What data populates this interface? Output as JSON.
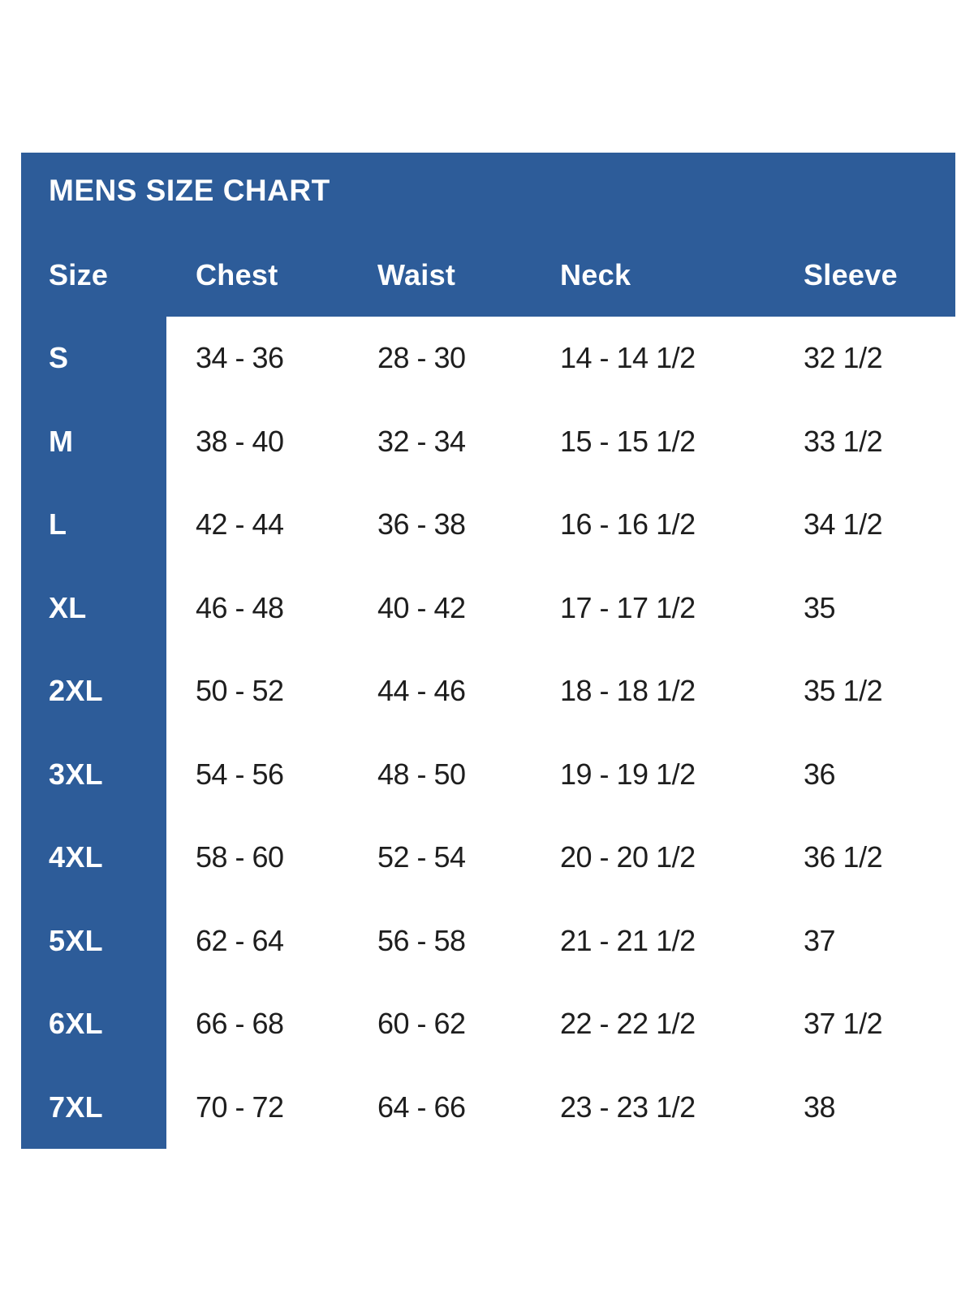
{
  "page": {
    "background_color": "#ffffff"
  },
  "panel": {
    "background_color": "#2d5c99",
    "title_color": "#ffffff",
    "data_text_color": "#1e1e1e"
  },
  "chart_data": {
    "type": "table",
    "title": "MENS SIZE CHART",
    "columns": [
      "Size",
      "Chest",
      "Waist",
      "Neck",
      "Sleeve"
    ],
    "rows": [
      [
        "S",
        "34 - 36",
        "28 - 30",
        "14 - 14 1/2",
        "32 1/2"
      ],
      [
        "M",
        "38 - 40",
        "32 - 34",
        "15 - 15 1/2",
        "33 1/2"
      ],
      [
        "L",
        "42 - 44",
        "36 - 38",
        "16 - 16 1/2",
        "34 1/2"
      ],
      [
        "XL",
        "46 - 48",
        "40 - 42",
        "17 - 17 1/2",
        "35"
      ],
      [
        "2XL",
        "50 - 52",
        "44 - 46",
        "18 - 18 1/2",
        "35 1/2"
      ],
      [
        "3XL",
        "54 - 56",
        "48 - 50",
        "19 - 19 1/2",
        "36"
      ],
      [
        "4XL",
        "58 - 60",
        "52 - 54",
        "20 - 20 1/2",
        "36 1/2"
      ],
      [
        "5XL",
        "62 - 64",
        "56 - 58",
        "21 - 21 1/2",
        "37"
      ],
      [
        "6XL",
        "66 - 68",
        "60 - 62",
        "22 - 22 1/2",
        "37 1/2"
      ],
      [
        "7XL",
        "70 - 72",
        "64 - 66",
        "23 - 23 1/2",
        "38"
      ]
    ]
  }
}
